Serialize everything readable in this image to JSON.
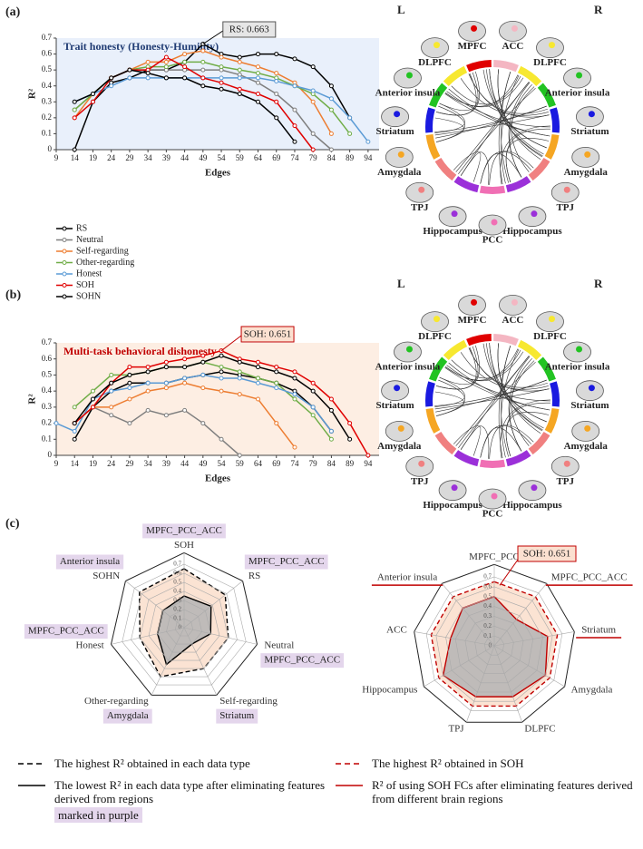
{
  "panels": [
    "(a)",
    "(b)",
    "(c)"
  ],
  "chart_data": [
    {
      "type": "line",
      "title": "Trait honesty (Honesty-Humility)",
      "title_color": "#1f3b73",
      "background": "#e9f0fb",
      "xlabel": "Edges",
      "ylabel": "R²",
      "x": [
        9,
        14,
        19,
        24,
        29,
        34,
        39,
        44,
        49,
        54,
        59,
        64,
        69,
        74,
        79,
        84,
        89,
        94
      ],
      "xlim": [
        9,
        97
      ],
      "xticks": [
        9,
        14,
        19,
        24,
        29,
        34,
        39,
        44,
        49,
        54,
        59,
        64,
        69,
        74,
        79,
        84,
        89,
        94
      ],
      "ylim": [
        0,
        0.7
      ],
      "yticks": [
        0,
        0.1,
        0.2,
        0.3,
        0.4,
        0.5,
        0.6,
        0.7
      ],
      "legend": "below",
      "annotation": {
        "text": "RS: 0.663",
        "x": 49,
        "y": 0.663
      },
      "series": [
        {
          "name": "RS",
          "color": "#000000",
          "values": [
            null,
            0,
            0.3,
            0.42,
            0.45,
            0.5,
            0.5,
            0.55,
            0.663,
            0.6,
            0.58,
            0.6,
            0.6,
            0.57,
            0.52,
            0.4,
            0.2,
            null
          ]
        },
        {
          "name": "Neutral",
          "color": "#7f7f7f",
          "values": [
            null,
            0.25,
            0.35,
            0.45,
            0.5,
            0.5,
            0.5,
            0.5,
            0.5,
            0.5,
            0.47,
            0.42,
            0.35,
            0.25,
            0.1,
            0,
            null,
            null
          ]
        },
        {
          "name": "Self-regarding",
          "color": "#ed7d31",
          "values": [
            null,
            0.2,
            0.35,
            0.45,
            0.5,
            0.55,
            0.55,
            0.6,
            0.62,
            0.58,
            0.55,
            0.52,
            0.48,
            0.42,
            0.3,
            0.1,
            null,
            null
          ]
        },
        {
          "name": "Other-regarding",
          "color": "#70ad47",
          "values": [
            null,
            0.25,
            0.35,
            0.45,
            0.5,
            0.52,
            0.52,
            0.55,
            0.55,
            0.52,
            0.5,
            0.48,
            0.45,
            0.4,
            0.35,
            0.25,
            0.1,
            null
          ]
        },
        {
          "name": "Honest",
          "color": "#5b9bd5",
          "values": [
            null,
            0.3,
            0.35,
            0.4,
            0.45,
            0.45,
            0.45,
            0.45,
            0.45,
            0.45,
            0.45,
            0.45,
            0.43,
            0.4,
            0.37,
            0.32,
            0.2,
            0.05
          ]
        },
        {
          "name": "SOH",
          "color": "#e00000",
          "values": [
            null,
            0.2,
            0.3,
            0.45,
            0.5,
            0.5,
            0.58,
            0.52,
            0.45,
            0.42,
            0.38,
            0.35,
            0.3,
            0.15,
            0,
            null,
            null,
            null
          ]
        },
        {
          "name": "SOHN",
          "color": "#000000",
          "values": [
            null,
            0.3,
            0.35,
            0.45,
            0.5,
            0.48,
            0.45,
            0.45,
            0.4,
            0.38,
            0.35,
            0.3,
            0.2,
            0.05,
            null,
            null,
            null,
            null
          ]
        }
      ]
    },
    {
      "type": "chord",
      "side_labels": [
        "L",
        "R"
      ],
      "segments": [
        {
          "name": "MPFC",
          "color": "#e00000"
        },
        {
          "name": "ACC",
          "color": "#f4b6c2"
        },
        {
          "name": "DLPFC",
          "color": "#f7e830"
        },
        {
          "name": "Anterior insula",
          "color": "#22c322"
        },
        {
          "name": "Striatum",
          "color": "#1a1ae0"
        },
        {
          "name": "Amygdala",
          "color": "#f5a623"
        },
        {
          "name": "TPJ",
          "color": "#f08080"
        },
        {
          "name": "Hippocampus",
          "color": "#9b30d9"
        },
        {
          "name": "PCC",
          "color": "#f06fb4"
        },
        {
          "name": "Hippocampus",
          "color": "#9b30d9"
        },
        {
          "name": "TPJ",
          "color": "#f08080"
        },
        {
          "name": "Amygdala",
          "color": "#f5a623"
        },
        {
          "name": "Striatum",
          "color": "#1a1ae0"
        },
        {
          "name": "Anterior insula",
          "color": "#22c322"
        },
        {
          "name": "DLPFC",
          "color": "#f7e830"
        }
      ]
    },
    {
      "type": "line",
      "title": "Multi-task behavioral dishonesty",
      "title_color": "#c00000",
      "background": "#fdeee3",
      "xlabel": "Edges",
      "ylabel": "R²",
      "x": [
        9,
        14,
        19,
        24,
        29,
        34,
        39,
        44,
        49,
        54,
        59,
        64,
        69,
        74,
        79,
        84,
        89,
        94
      ],
      "xlim": [
        9,
        97
      ],
      "xticks": [
        9,
        14,
        19,
        24,
        29,
        34,
        39,
        44,
        49,
        54,
        59,
        64,
        69,
        74,
        79,
        84,
        89,
        94
      ],
      "ylim": [
        0,
        0.7
      ],
      "yticks": [
        0,
        0.1,
        0.2,
        0.3,
        0.4,
        0.5,
        0.6,
        0.7
      ],
      "annotation": {
        "text": "SOH: 0.651",
        "x": 54,
        "y": 0.651
      },
      "series": [
        {
          "color": "#000000",
          "values": [
            null,
            0.1,
            0.3,
            0.4,
            0.45,
            0.45,
            0.45,
            0.48,
            0.5,
            0.52,
            0.5,
            0.48,
            0.45,
            0.4,
            0.3,
            0.15,
            null,
            null
          ]
        },
        {
          "color": "#7f7f7f",
          "values": [
            null,
            0.2,
            0.3,
            0.25,
            0.2,
            0.28,
            0.25,
            0.28,
            0.2,
            0.1,
            0,
            null,
            null,
            null,
            null,
            null,
            null,
            null
          ]
        },
        {
          "color": "#ed7d31",
          "values": [
            null,
            0.2,
            0.3,
            0.3,
            0.35,
            0.4,
            0.42,
            0.45,
            0.42,
            0.4,
            0.38,
            0.35,
            0.2,
            0.05,
            null,
            null,
            null,
            null
          ]
        },
        {
          "color": "#70ad47",
          "values": [
            null,
            0.3,
            0.4,
            0.5,
            0.5,
            0.52,
            0.55,
            0.55,
            0.58,
            0.55,
            0.52,
            0.48,
            0.45,
            0.35,
            0.25,
            0.1,
            null,
            null
          ]
        },
        {
          "color": "#5b9bd5",
          "values": [
            0.2,
            0.15,
            0.35,
            0.4,
            0.42,
            0.45,
            0.45,
            0.48,
            0.5,
            0.48,
            0.48,
            0.45,
            0.42,
            0.38,
            0.3,
            0.15,
            null,
            null
          ]
        },
        {
          "color": "#e00000",
          "values": [
            null,
            0.2,
            0.3,
            0.45,
            0.55,
            0.55,
            0.58,
            0.6,
            0.62,
            0.651,
            0.6,
            0.58,
            0.55,
            0.52,
            0.45,
            0.35,
            0.2,
            0
          ]
        },
        {
          "color": "#000000",
          "values": [
            null,
            0.2,
            0.35,
            0.45,
            0.5,
            0.52,
            0.55,
            0.55,
            0.58,
            0.62,
            0.58,
            0.55,
            0.52,
            0.48,
            0.4,
            0.28,
            0.1,
            null
          ]
        }
      ]
    },
    {
      "type": "chord",
      "side_labels": [
        "L",
        "R"
      ],
      "segments": [
        {
          "name": "MPFC",
          "color": "#e00000"
        },
        {
          "name": "ACC",
          "color": "#f4b6c2"
        },
        {
          "name": "DLPFC",
          "color": "#f7e830"
        },
        {
          "name": "Anterior insula",
          "color": "#22c322"
        },
        {
          "name": "Striatum",
          "color": "#1a1ae0"
        },
        {
          "name": "Amygdala",
          "color": "#f5a623"
        },
        {
          "name": "TPJ",
          "color": "#f08080"
        },
        {
          "name": "Hippocampus",
          "color": "#9b30d9"
        },
        {
          "name": "PCC",
          "color": "#f06fb4"
        },
        {
          "name": "Hippocampus",
          "color": "#9b30d9"
        },
        {
          "name": "TPJ",
          "color": "#f08080"
        },
        {
          "name": "Amygdala",
          "color": "#f5a623"
        },
        {
          "name": "Striatum",
          "color": "#1a1ae0"
        },
        {
          "name": "Anterior insula",
          "color": "#22c322"
        },
        {
          "name": "DLPFC",
          "color": "#f7e830"
        }
      ]
    },
    {
      "type": "radar",
      "axes": [
        "SOH",
        "RS",
        "Neutral",
        "Self-regarding",
        "Other-regarding",
        "Honest",
        "SOHN"
      ],
      "region_labels": [
        "MPFC_PCC_ACC",
        "MPFC_PCC_ACC",
        "MPFC_PCC_ACC",
        "Striatum",
        "Amygdala",
        "MPFC_PCC_ACC",
        "Anterior insula"
      ],
      "rlim": [
        0,
        0.7
      ],
      "rticks": [
        0,
        0.1,
        0.2,
        0.3,
        0.4,
        0.5,
        0.6,
        0.7
      ],
      "legend_note": "marked in purple",
      "series": [
        {
          "name": "The highest R² obtained in each data type",
          "color": "#000000",
          "fill": "#fbe3d3",
          "dashed": true,
          "values": [
            0.65,
            0.58,
            0.5,
            0.5,
            0.6,
            0.5,
            0.63
          ]
        },
        {
          "name": "The lowest R² in each data type after eliminating features derived from regions",
          "color": "#000000",
          "fill": "#b4b4b4",
          "dashed": false,
          "values": [
            0.35,
            0.38,
            0.3,
            0.2,
            0.45,
            0.3,
            0.3
          ]
        }
      ]
    },
    {
      "type": "radar",
      "axes": [
        "MPFC_PCC",
        "MPFC_PCC_ACC",
        "Striatum",
        "Amygdala",
        "DLPFC",
        "TPJ",
        "Hippocampus",
        "ACC",
        "Anterior insula"
      ],
      "underlined": [
        false,
        true,
        true,
        false,
        false,
        false,
        false,
        false,
        true
      ],
      "rlim": [
        0,
        0.7
      ],
      "rticks": [
        0,
        0.1,
        0.2,
        0.3,
        0.4,
        0.5,
        0.6,
        0.7
      ],
      "annotation": {
        "text": "SOH: 0.651"
      },
      "series": [
        {
          "name": "The highest R² obtained in SOH",
          "color": "#c00000",
          "fill": "#fbe3d3",
          "dashed": true,
          "values": [
            0.651,
            0.651,
            0.651,
            0.651,
            0.651,
            0.651,
            0.651,
            0.651,
            0.651
          ]
        },
        {
          "name": "R² of using SOH FCs after eliminating features derived from different brain regions",
          "color": "#c00000",
          "fill": "#b4b4b4",
          "dashed": false,
          "values": [
            0.5,
            0.35,
            0.55,
            0.6,
            0.55,
            0.55,
            0.6,
            0.45,
            0.5
          ]
        }
      ]
    }
  ]
}
